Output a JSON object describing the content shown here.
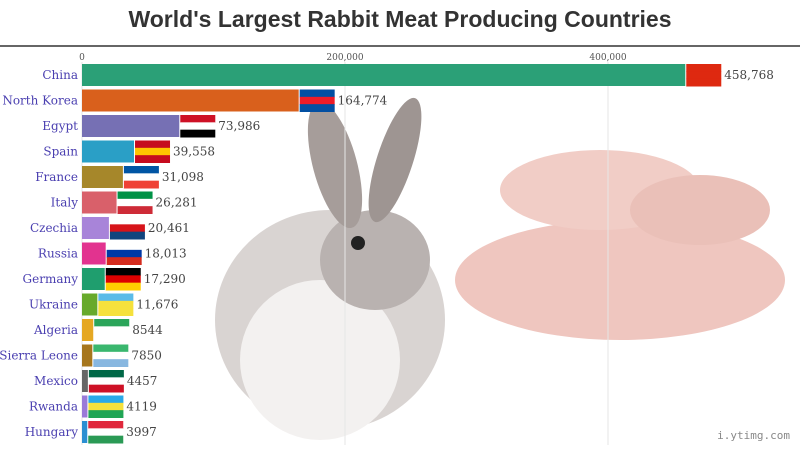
{
  "title": "World's Largest Rabbit Meat Producing Countries",
  "watermark": "i.ytimg.com",
  "chart_data": {
    "type": "bar",
    "orientation": "horizontal",
    "title": "World's Largest Rabbit Meat Producing Countries",
    "xlim": [
      0,
      480000
    ],
    "xticks": [
      0,
      200000,
      400000
    ],
    "xtick_labels": [
      "0",
      "200,000",
      "400,000"
    ],
    "grid": true,
    "categories": [
      "China",
      "North Korea",
      "Egypt",
      "Spain",
      "France",
      "Italy",
      "Czechia",
      "Russia",
      "Germany",
      "Ukraine",
      "Algeria",
      "Sierra Leone",
      "Mexico",
      "Rwanda",
      "Hungary"
    ],
    "values": [
      458768,
      164774,
      73986,
      39558,
      31098,
      26281,
      20461,
      18013,
      17290,
      11676,
      8544,
      7850,
      4457,
      4119,
      3997
    ],
    "value_labels": [
      "458,768",
      "164,774",
      "73,986",
      "39,558",
      "31,098",
      "26,281",
      "20,461",
      "18,013",
      "17,290",
      "11,676",
      "8544",
      "7850",
      "4457",
      "4119",
      "3997"
    ],
    "colors": [
      "#2ba077",
      "#d9601c",
      "#7670b4",
      "#2a9fc6",
      "#a6872a",
      "#d9606a",
      "#a884d9",
      "#e2338f",
      "#1f9e6e",
      "#67a92b",
      "#e5a823",
      "#a6761d",
      "#666666",
      "#9a7ad8",
      "#2b8fd2"
    ],
    "flags": [
      [
        "#de2910",
        "#de2910",
        "#de2910"
      ],
      [
        "#024fa2",
        "#ed1c27",
        "#024fa2"
      ],
      [
        "#ce1126",
        "#ffffff",
        "#000000"
      ],
      [
        "#c60b1e",
        "#ffc400",
        "#c60b1e"
      ],
      [
        "#0055a4",
        "#ffffff",
        "#ef4135"
      ],
      [
        "#009246",
        "#ffffff",
        "#ce2b37"
      ],
      [
        "#ffffff",
        "#d7141a",
        "#11457e"
      ],
      [
        "#ffffff",
        "#0039a6",
        "#d52b1e"
      ],
      [
        "#000000",
        "#dd0000",
        "#ffce00"
      ],
      [
        "#5bbbe8",
        "#f5e13c",
        "#f5e13c"
      ],
      [
        "#2ba55a",
        "#ffffff",
        "#ffffff"
      ],
      [
        "#3ab76e",
        "#ffffff",
        "#88b7e0"
      ],
      [
        "#006847",
        "#ffffff",
        "#ce1126"
      ],
      [
        "#2aa9e8",
        "#f5e13c",
        "#20a555"
      ],
      [
        "#e0283c",
        "#ffffff",
        "#2a9a55"
      ]
    ]
  }
}
